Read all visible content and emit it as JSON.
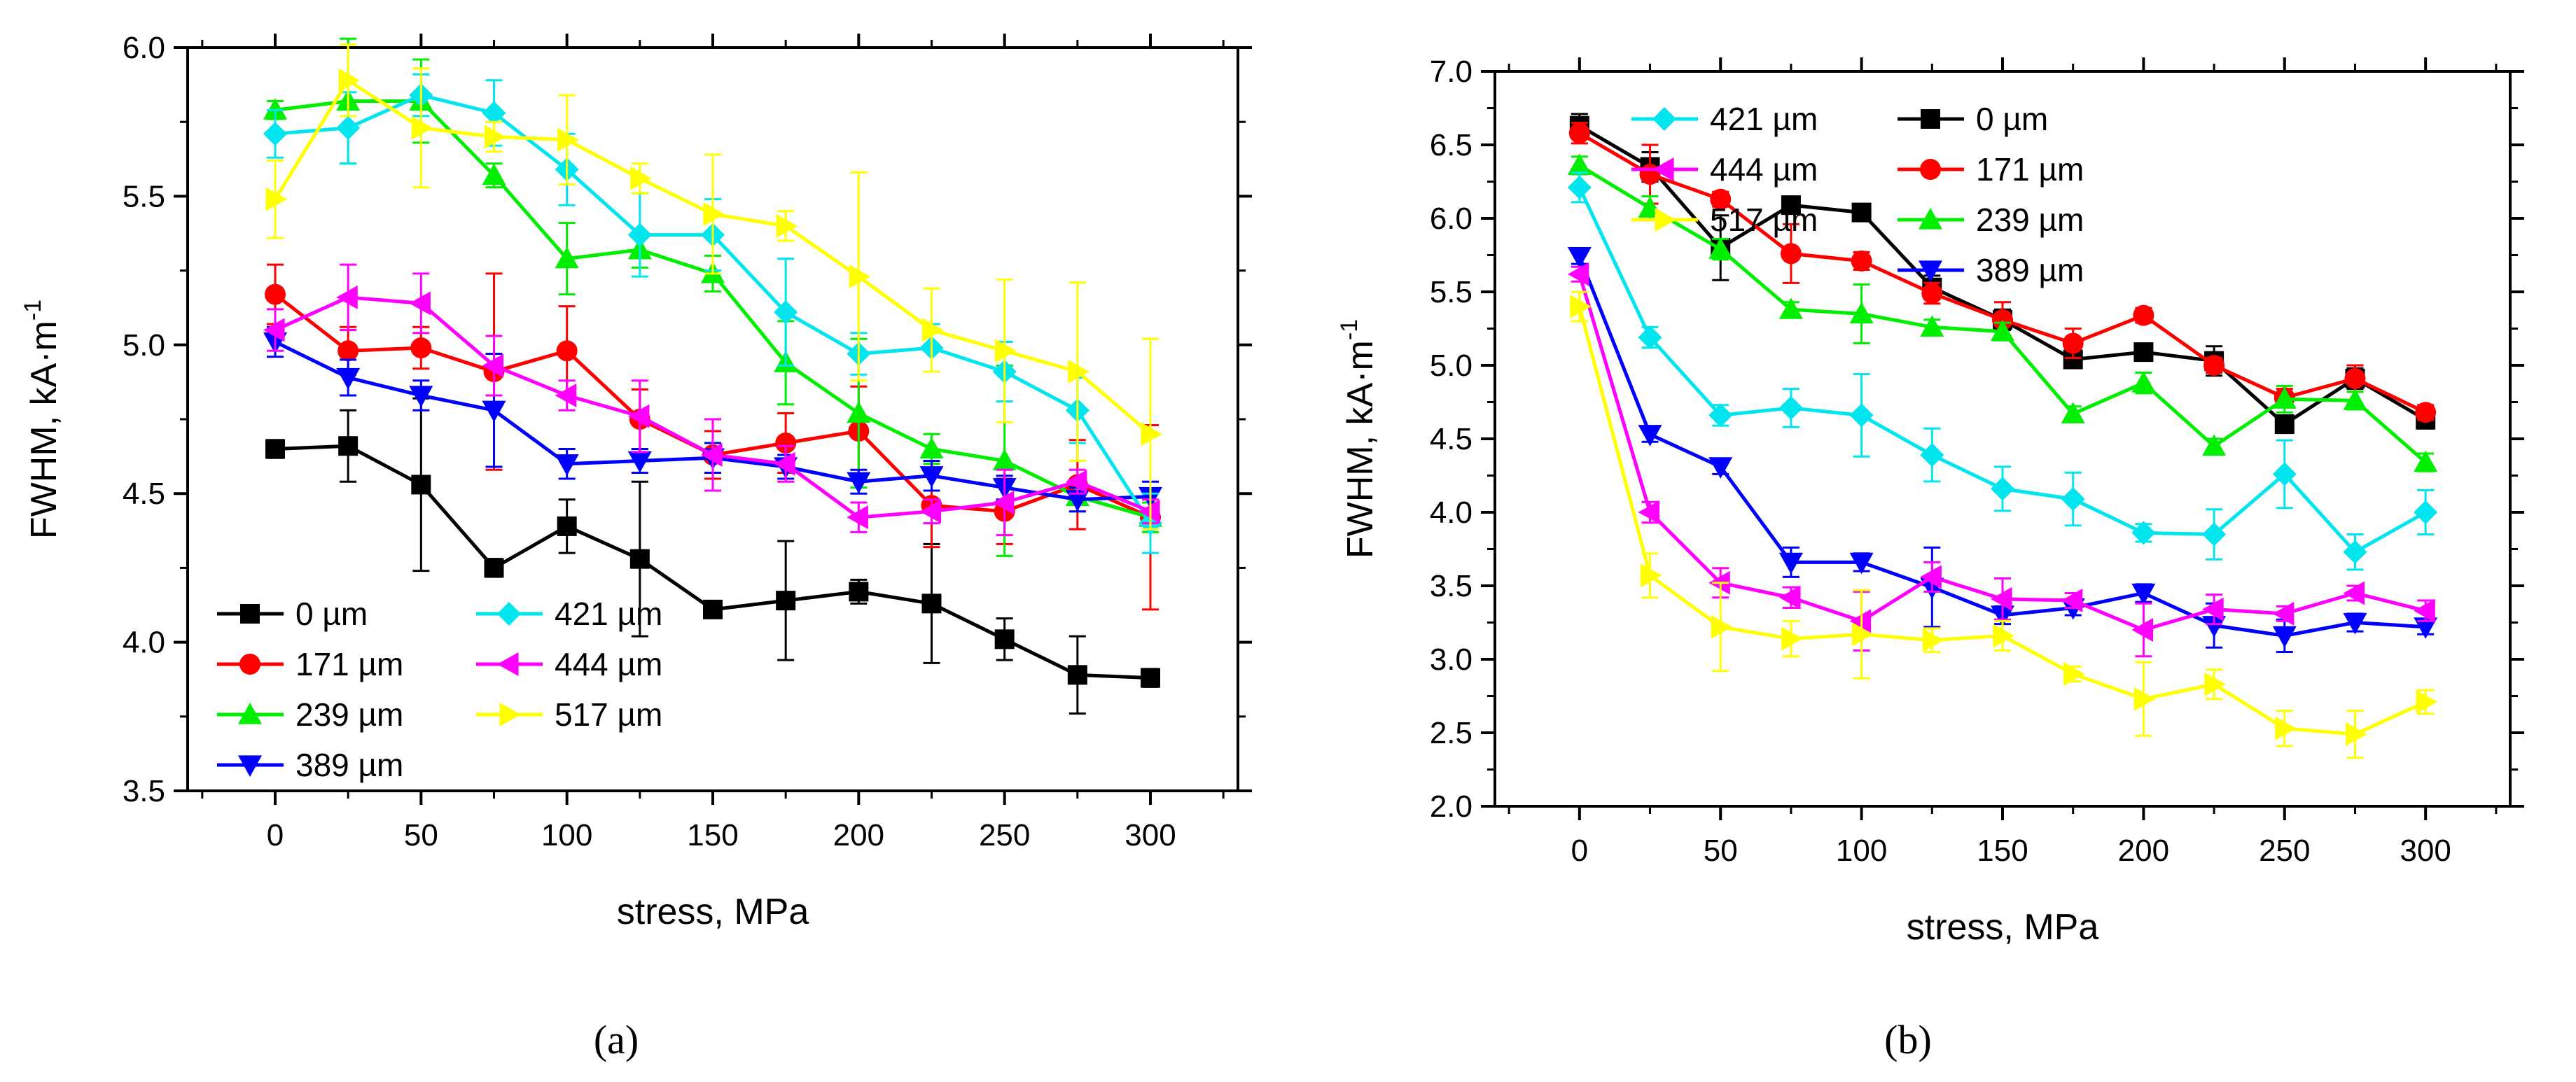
{
  "chart_data": [
    {
      "type": "line",
      "panel_label": "(a)",
      "xlabel": "stress, MPa",
      "ylabel": "FWHM, kA·m",
      "ylabel_superscript": "-1",
      "xlim": [
        -30,
        330
      ],
      "ylim": [
        3.5,
        6.0
      ],
      "x_ticks": [
        0,
        50,
        100,
        150,
        200,
        250,
        300
      ],
      "y_ticks": [
        3.5,
        4.0,
        4.5,
        5.0,
        5.5,
        6.0
      ],
      "x_tick_labels": [
        "0",
        "50",
        "100",
        "150",
        "200",
        "250",
        "300"
      ],
      "y_tick_labels": [
        "3.5",
        "4.0",
        "4.5",
        "5.0",
        "5.5",
        "6.0"
      ],
      "legend_position": "bottom-left",
      "legend_columns": [
        [
          0,
          1,
          2,
          3
        ],
        [
          4,
          5,
          6
        ]
      ],
      "x": [
        0,
        25,
        50,
        75,
        100,
        125,
        150,
        175,
        200,
        225,
        250,
        275,
        300
      ],
      "series": [
        {
          "name": "0 µm",
          "color": "#000000",
          "marker": "square",
          "values": [
            4.65,
            4.66,
            4.53,
            4.25,
            4.39,
            4.28,
            4.11,
            4.14,
            4.17,
            4.13,
            4.01,
            3.89,
            3.88
          ],
          "errors": [
            0.03,
            0.12,
            0.29,
            0.03,
            0.09,
            0.26,
            0.02,
            0.2,
            0.04,
            0.2,
            0.07,
            0.13,
            0.03
          ]
        },
        {
          "name": "171 µm",
          "color": "#ff0000",
          "marker": "circle",
          "values": [
            5.17,
            4.98,
            4.99,
            4.91,
            4.98,
            4.75,
            4.63,
            4.67,
            4.71,
            4.46,
            4.44,
            4.53,
            4.42
          ],
          "errors": [
            0.1,
            0.08,
            0.07,
            0.33,
            0.15,
            0.1,
            0.08,
            0.1,
            0.15,
            0.14,
            0.11,
            0.15,
            0.31
          ]
        },
        {
          "name": "239 µm",
          "color": "#00ee00",
          "marker": "triangle-up",
          "values": [
            5.79,
            5.82,
            5.82,
            5.57,
            5.29,
            5.32,
            5.24,
            4.94,
            4.77,
            4.65,
            4.61,
            4.49,
            4.42
          ],
          "errors": [
            0.03,
            0.21,
            0.14,
            0.04,
            0.12,
            0.06,
            0.06,
            0.14,
            0.25,
            0.05,
            0.32,
            0.05,
            0.05
          ]
        },
        {
          "name": "389 µm",
          "color": "#0000ff",
          "marker": "triangle-down",
          "values": [
            5.01,
            4.89,
            4.83,
            4.78,
            4.6,
            4.61,
            4.62,
            4.59,
            4.54,
            4.56,
            4.52,
            4.48,
            4.49
          ],
          "errors": [
            0.05,
            0.06,
            0.05,
            0.19,
            0.05,
            0.04,
            0.05,
            0.04,
            0.04,
            0.05,
            0.04,
            0.04,
            0.05
          ]
        },
        {
          "name": "421 µm",
          "color": "#00e5ee",
          "marker": "diamond",
          "values": [
            5.71,
            5.73,
            5.84,
            5.78,
            5.59,
            5.37,
            5.37,
            5.11,
            4.97,
            4.99,
            4.91,
            4.78,
            4.4
          ],
          "errors": [
            0.08,
            0.12,
            0.07,
            0.11,
            0.12,
            0.14,
            0.12,
            0.18,
            0.07,
            0.08,
            0.1,
            0.11,
            0.1
          ]
        },
        {
          "name": "444 µm",
          "color": "#ff00ff",
          "marker": "triangle-left",
          "values": [
            5.05,
            5.16,
            5.14,
            4.93,
            4.83,
            4.76,
            4.63,
            4.6,
            4.42,
            4.44,
            4.47,
            4.54,
            4.44
          ],
          "errors": [
            0.07,
            0.11,
            0.1,
            0.1,
            0.05,
            0.12,
            0.12,
            0.06,
            0.05,
            0.04,
            0.11,
            0.04,
            0.04
          ]
        },
        {
          "name": "517 µm",
          "color": "#ffff00",
          "marker": "triangle-right",
          "values": [
            5.49,
            5.89,
            5.73,
            5.7,
            5.69,
            5.56,
            5.44,
            5.4,
            5.23,
            5.05,
            4.98,
            4.91,
            4.7
          ],
          "errors": [
            0.13,
            0.12,
            0.2,
            0.05,
            0.15,
            0.05,
            0.2,
            0.05,
            0.35,
            0.14,
            0.24,
            0.3,
            0.32
          ]
        }
      ]
    },
    {
      "type": "line",
      "panel_label": "(b)",
      "xlabel": "stress, MPa",
      "ylabel": "FWHM, kA·m",
      "ylabel_superscript": "-1",
      "xlim": [
        -30,
        330
      ],
      "ylim": [
        2.0,
        7.0
      ],
      "x_ticks": [
        0,
        50,
        100,
        150,
        200,
        250,
        300
      ],
      "y_ticks": [
        2.0,
        2.5,
        3.0,
        3.5,
        4.0,
        4.5,
        5.0,
        5.5,
        6.0,
        6.5,
        7.0
      ],
      "x_tick_labels": [
        "0",
        "50",
        "100",
        "150",
        "200",
        "250",
        "300"
      ],
      "y_tick_labels": [
        "2.0",
        "2.5",
        "3.0",
        "3.5",
        "4.0",
        "4.5",
        "5.0",
        "5.5",
        "6.0",
        "6.5",
        "7.0"
      ],
      "legend_position": "top-right",
      "legend_columns": [
        [
          4,
          5,
          6
        ],
        [
          0,
          1,
          2,
          3
        ]
      ],
      "x": [
        0,
        25,
        50,
        75,
        100,
        125,
        150,
        175,
        200,
        225,
        250,
        275,
        300
      ],
      "series": [
        {
          "name": "0 µm",
          "color": "#000000",
          "marker": "square",
          "values": [
            6.63,
            6.35,
            5.8,
            6.09,
            6.04,
            5.53,
            5.31,
            5.04,
            5.09,
            5.03,
            4.6,
            4.91,
            4.63
          ],
          "errors": [
            0.08,
            0.1,
            0.22,
            0.05,
            0.05,
            0.08,
            0.07,
            0.05,
            0.05,
            0.1,
            0.06,
            0.07,
            0.06
          ]
        },
        {
          "name": "171 µm",
          "color": "#ff0000",
          "marker": "circle",
          "values": [
            6.58,
            6.3,
            6.13,
            5.76,
            5.71,
            5.49,
            5.31,
            5.15,
            5.34,
            5.0,
            4.78,
            4.91,
            4.68
          ],
          "errors": [
            0.07,
            0.2,
            0.05,
            0.2,
            0.06,
            0.07,
            0.12,
            0.1,
            0.05,
            0.05,
            0.06,
            0.09,
            0.05
          ]
        },
        {
          "name": "239 µm",
          "color": "#00ee00",
          "marker": "triangle-up",
          "values": [
            6.36,
            6.07,
            5.79,
            5.38,
            5.35,
            5.26,
            5.23,
            4.67,
            4.88,
            4.45,
            4.77,
            4.76,
            4.34
          ],
          "errors": [
            0.06,
            0.08,
            0.07,
            0.05,
            0.2,
            0.05,
            0.06,
            0.05,
            0.07,
            0.05,
            0.09,
            0.06,
            0.06
          ]
        },
        {
          "name": "389 µm",
          "color": "#0000ff",
          "marker": "triangle-down",
          "values": [
            5.74,
            4.53,
            4.31,
            3.66,
            3.66,
            3.49,
            3.3,
            3.35,
            3.45,
            3.23,
            3.16,
            3.25,
            3.22
          ],
          "errors": [
            0.05,
            0.05,
            0.05,
            0.1,
            0.06,
            0.27,
            0.06,
            0.05,
            0.06,
            0.15,
            0.11,
            0.06,
            0.05
          ]
        },
        {
          "name": "421 µm",
          "color": "#00e5ee",
          "marker": "diamond",
          "values": [
            6.21,
            5.19,
            4.66,
            4.71,
            4.66,
            4.39,
            4.16,
            4.09,
            3.86,
            3.85,
            4.26,
            3.73,
            4.0
          ],
          "errors": [
            0.1,
            0.07,
            0.07,
            0.13,
            0.28,
            0.18,
            0.15,
            0.18,
            0.06,
            0.17,
            0.23,
            0.12,
            0.15
          ]
        },
        {
          "name": "444 µm",
          "color": "#ff00ff",
          "marker": "triangle-left",
          "values": [
            5.62,
            4.0,
            3.52,
            3.42,
            3.26,
            3.56,
            3.41,
            3.4,
            3.2,
            3.34,
            3.31,
            3.45,
            3.33
          ],
          "errors": [
            0.05,
            0.07,
            0.1,
            0.07,
            0.2,
            0.1,
            0.14,
            0.05,
            0.18,
            0.1,
            0.05,
            0.05,
            0.07
          ]
        },
        {
          "name": "517 µm",
          "color": "#ffff00",
          "marker": "triangle-right",
          "values": [
            5.4,
            3.57,
            3.22,
            3.14,
            3.17,
            3.13,
            3.16,
            2.9,
            2.73,
            2.83,
            2.53,
            2.49,
            2.71
          ],
          "errors": [
            0.1,
            0.15,
            0.3,
            0.12,
            0.3,
            0.08,
            0.1,
            0.05,
            0.25,
            0.1,
            0.12,
            0.16,
            0.08
          ]
        }
      ]
    }
  ]
}
